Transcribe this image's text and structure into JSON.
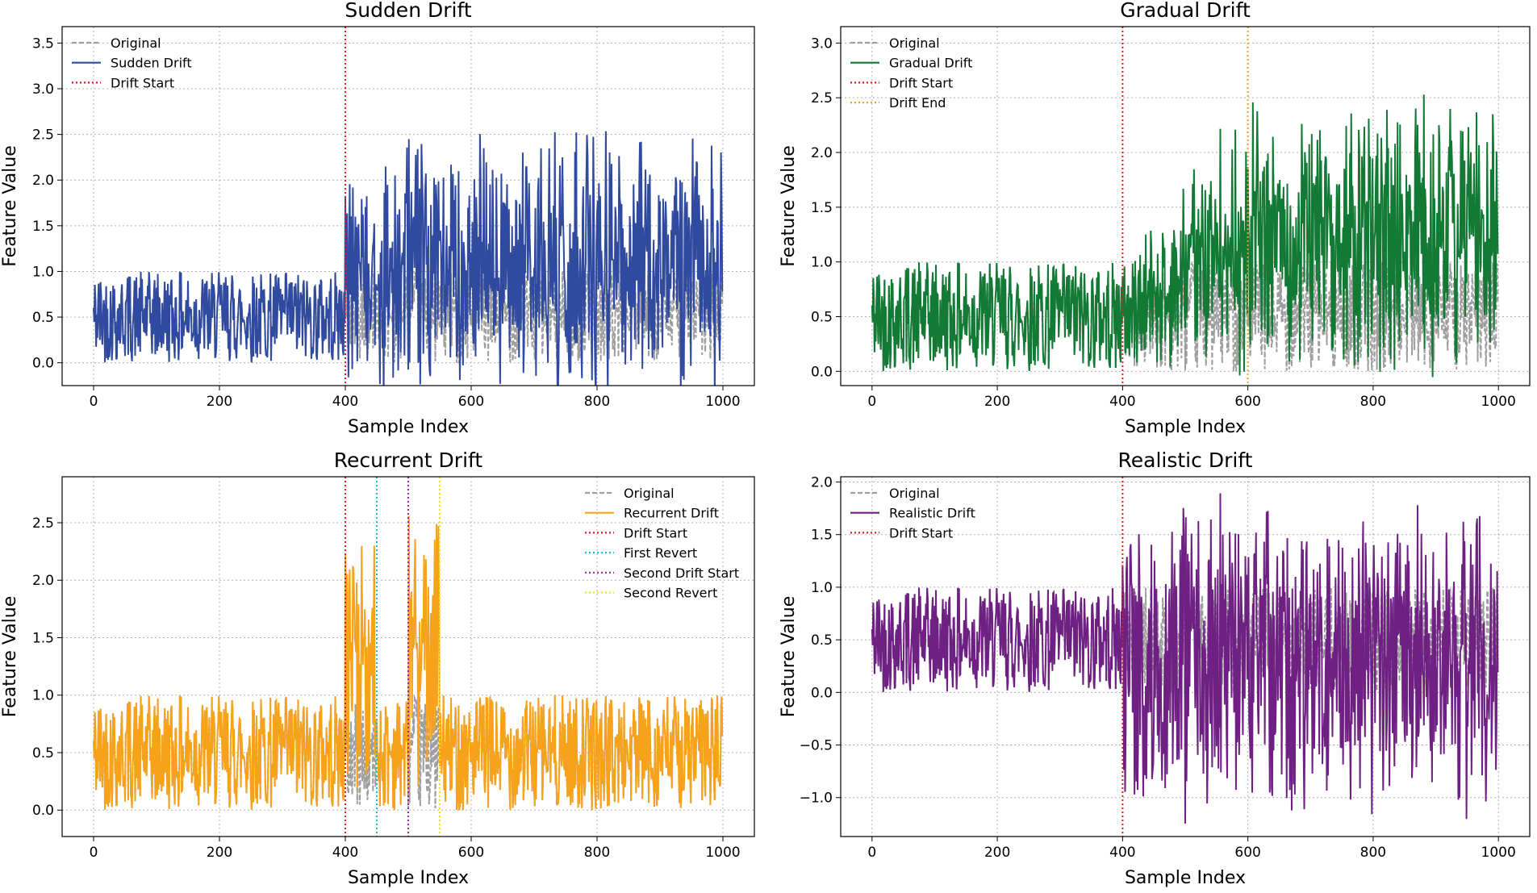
{
  "figure": {
    "charts": [
      {
        "id": "sudden",
        "type": "line",
        "title": "Sudden Drift",
        "xlabel": "Sample Index",
        "ylabel": "Feature Value",
        "xlim": [
          -50,
          1050
        ],
        "ylim": [
          -0.25,
          3.68
        ],
        "xticks": [
          0,
          200,
          400,
          600,
          800,
          1000
        ],
        "yticks": [
          0.0,
          0.5,
          1.0,
          1.5,
          2.0,
          2.5,
          3.0,
          3.5
        ],
        "ytick_labels": [
          "0.0",
          "0.5",
          "1.0",
          "1.5",
          "2.0",
          "2.5",
          "3.0",
          "3.5"
        ],
        "grid": true,
        "legend_position": "top-left",
        "drift": {
          "kind": "sudden",
          "start": 400,
          "scale": 1.6,
          "spread": 1.6
        },
        "original_label": "Original",
        "original_color": "#9e9e9e",
        "drift_label": "Sudden Drift",
        "drift_color": "#2f4a9e",
        "vlines": [
          {
            "x": 400,
            "label": "Drift Start",
            "color": "#e41a1c"
          }
        ]
      },
      {
        "id": "gradual",
        "type": "line",
        "title": "Gradual Drift",
        "xlabel": "Sample Index",
        "ylabel": "Feature Value",
        "xlim": [
          -50,
          1050
        ],
        "ylim": [
          -0.13,
          3.15
        ],
        "xticks": [
          0,
          200,
          400,
          600,
          800,
          1000
        ],
        "yticks": [
          0.0,
          0.5,
          1.0,
          1.5,
          2.0,
          2.5,
          3.0
        ],
        "ytick_labels": [
          "0.0",
          "0.5",
          "1.0",
          "1.5",
          "2.0",
          "2.5",
          "3.0"
        ],
        "grid": true,
        "legend_position": "top-left",
        "drift": {
          "kind": "gradual",
          "start": 400,
          "end": 600,
          "scale": 1.5
        },
        "original_label": "Original",
        "original_color": "#9e9e9e",
        "drift_label": "Gradual Drift",
        "drift_color": "#127a35",
        "vlines": [
          {
            "x": 400,
            "label": "Drift Start",
            "color": "#e41a1c"
          },
          {
            "x": 600,
            "label": "Drift End",
            "color": "#f0a020"
          }
        ]
      },
      {
        "id": "recurrent",
        "type": "line",
        "title": "Recurrent Drift",
        "xlabel": "Sample Index",
        "ylabel": "Feature Value",
        "xlim": [
          -50,
          1050
        ],
        "ylim": [
          -0.23,
          2.9
        ],
        "xticks": [
          0,
          200,
          400,
          600,
          800,
          1000
        ],
        "yticks": [
          0.0,
          0.5,
          1.0,
          1.5,
          2.0,
          2.5
        ],
        "ytick_labels": [
          "0.0",
          "0.5",
          "1.0",
          "1.5",
          "2.0",
          "2.5"
        ],
        "grid": true,
        "legend_position": "top-right",
        "drift": {
          "kind": "recurrent",
          "segments": [
            [
              400,
              450
            ],
            [
              500,
              550
            ]
          ],
          "scale": 1.5
        },
        "original_label": "Original",
        "original_color": "#9e9e9e",
        "drift_label": "Recurrent Drift",
        "drift_color": "#f7a21b",
        "vlines": [
          {
            "x": 400,
            "label": "Drift Start",
            "color": "#e41a1c"
          },
          {
            "x": 450,
            "label": "First Revert",
            "color": "#17becf"
          },
          {
            "x": 500,
            "label": "Second Drift Start",
            "color": "#a020a0"
          },
          {
            "x": 550,
            "label": "Second Revert",
            "color": "#f0e020"
          }
        ]
      },
      {
        "id": "realistic",
        "type": "line",
        "title": "Realistic Drift",
        "xlabel": "Sample Index",
        "ylabel": "Feature Value",
        "xlim": [
          -50,
          1050
        ],
        "ylim": [
          -1.37,
          2.05
        ],
        "xticks": [
          0,
          200,
          400,
          600,
          800,
          1000
        ],
        "yticks": [
          -1.0,
          -0.5,
          0.0,
          0.5,
          1.0,
          1.5,
          2.0
        ],
        "ytick_labels": [
          "−1.0",
          "−0.5",
          "0.0",
          "0.5",
          "1.0",
          "1.5",
          "2.0"
        ],
        "grid": true,
        "legend_position": "top-left",
        "drift": {
          "kind": "realistic",
          "start": 400,
          "shift": -0.2,
          "spread": 2.2
        },
        "original_label": "Original",
        "original_color": "#9e9e9e",
        "drift_label": "Realistic Drift",
        "drift_color": "#6e2083",
        "vlines": [
          {
            "x": 400,
            "label": "Drift Start",
            "color": "#e41a1c"
          }
        ]
      }
    ]
  }
}
